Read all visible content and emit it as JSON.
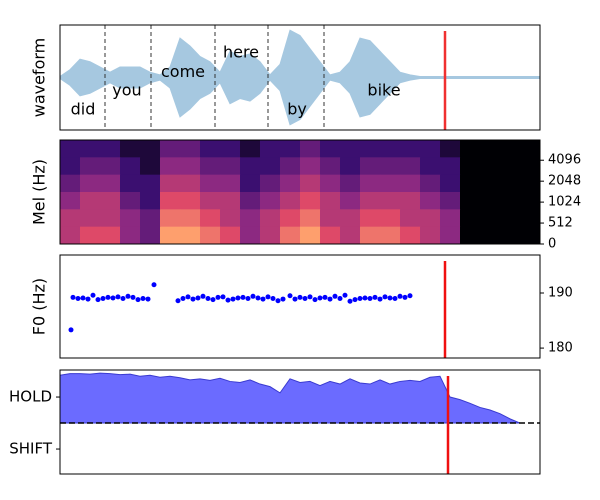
{
  "chart_data": [
    {
      "type": "waveform",
      "y_label": "waveform",
      "color": "#a6c8e0",
      "xlim": [
        0,
        480
      ],
      "ylim": [
        -1,
        1
      ],
      "x": [
        0,
        10,
        20,
        30,
        40,
        50,
        60,
        70,
        80,
        90,
        100,
        110,
        120,
        130,
        140,
        150,
        160,
        170,
        180,
        190,
        200,
        210,
        220,
        230,
        240,
        250,
        260,
        270,
        280,
        290,
        300,
        310,
        320,
        330,
        340,
        350,
        360,
        370,
        380,
        390,
        400,
        410,
        420,
        430,
        440,
        450,
        460,
        470,
        480
      ],
      "values": [
        0.02,
        0.15,
        0.35,
        0.3,
        0.2,
        0.1,
        0.2,
        0.2,
        0.2,
        0.1,
        0.05,
        0.2,
        0.75,
        0.6,
        0.4,
        0.3,
        0.1,
        0.5,
        0.4,
        0.45,
        0.3,
        0.05,
        0.25,
        0.9,
        0.8,
        0.55,
        0.3,
        0.05,
        0.1,
        0.3,
        0.75,
        0.7,
        0.5,
        0.3,
        0.1,
        0.05,
        0.02,
        0.02,
        0.02,
        0.02,
        0.02,
        0.02,
        0.02,
        0.02,
        0.02,
        0.02,
        0.02,
        0.02,
        0.02
      ],
      "words": [
        {
          "text": "did",
          "x": 23,
          "y": -0.62
        },
        {
          "text": "you",
          "x": 67,
          "y": -0.26
        },
        {
          "text": "come",
          "x": 123,
          "y": 0.1
        },
        {
          "text": "here",
          "x": 181,
          "y": 0.47
        },
        {
          "text": "by",
          "x": 237,
          "y": -0.62
        },
        {
          "text": "bike",
          "x": 324,
          "y": -0.26
        }
      ],
      "boundaries": [
        45,
        91,
        155,
        208,
        264
      ],
      "cursor": 385,
      "cursor_color": "#f03030"
    },
    {
      "type": "heatmap",
      "y_label": "Mel (Hz)",
      "xlim": [
        0,
        480
      ],
      "ylim": [
        0,
        8000
      ],
      "yscale": "symlog",
      "linthresh": 512,
      "ytick_side": "right",
      "yticks": [
        0,
        512,
        1024,
        2048,
        4096
      ],
      "colormap": [
        "#000004",
        "#3b0f70",
        "#8c2981",
        "#de4968",
        "#fe9f6d",
        "#fcfdbf"
      ],
      "z": [
        [
          0.2,
          0.2,
          0.2,
          0.1,
          0.1,
          0.3,
          0.3,
          0.2,
          0.2,
          0.1,
          0.2,
          0.2,
          0.3,
          0.2,
          0.2,
          0.2,
          0.2,
          0.2,
          0.2,
          0.1,
          0,
          0,
          0,
          0
        ],
        [
          0.2,
          0.3,
          0.3,
          0.2,
          0.1,
          0.4,
          0.4,
          0.3,
          0.3,
          0.2,
          0.2,
          0.3,
          0.4,
          0.3,
          0.2,
          0.3,
          0.3,
          0.3,
          0.2,
          0.2,
          0,
          0,
          0,
          0
        ],
        [
          0.3,
          0.4,
          0.4,
          0.2,
          0.2,
          0.5,
          0.5,
          0.4,
          0.4,
          0.2,
          0.3,
          0.4,
          0.5,
          0.4,
          0.3,
          0.4,
          0.4,
          0.4,
          0.3,
          0.2,
          0,
          0,
          0,
          0
        ],
        [
          0.4,
          0.5,
          0.5,
          0.3,
          0.2,
          0.6,
          0.6,
          0.5,
          0.5,
          0.3,
          0.4,
          0.5,
          0.6,
          0.5,
          0.4,
          0.5,
          0.5,
          0.5,
          0.4,
          0.3,
          0,
          0,
          0,
          0
        ],
        [
          0.5,
          0.5,
          0.5,
          0.4,
          0.3,
          0.7,
          0.7,
          0.6,
          0.5,
          0.4,
          0.5,
          0.6,
          0.7,
          0.5,
          0.5,
          0.6,
          0.6,
          0.5,
          0.5,
          0.4,
          0,
          0,
          0,
          0
        ],
        [
          0.5,
          0.6,
          0.6,
          0.4,
          0.3,
          0.8,
          0.8,
          0.7,
          0.6,
          0.4,
          0.5,
          0.7,
          0.8,
          0.6,
          0.5,
          0.7,
          0.7,
          0.6,
          0.5,
          0.4,
          0,
          0,
          0,
          0
        ]
      ]
    },
    {
      "type": "scatter",
      "y_label": "F0 (Hz)",
      "xlim": [
        0,
        480
      ],
      "ylim": [
        178.2,
        196.9
      ],
      "yticks": [
        180,
        190
      ],
      "ytick_side": "right",
      "color": "#0000ff",
      "cursor": 385,
      "cursor_color": "#f01010",
      "x": [
        11,
        13,
        18,
        23,
        28,
        33,
        38,
        43,
        48,
        53,
        58,
        63,
        68,
        73,
        78,
        83,
        88,
        94,
        118,
        123,
        128,
        133,
        138,
        143,
        148,
        153,
        158,
        163,
        168,
        173,
        178,
        183,
        188,
        193,
        198,
        203,
        208,
        213,
        218,
        223,
        230,
        235,
        240,
        245,
        250,
        255,
        260,
        265,
        270,
        275,
        280,
        285,
        290,
        295,
        300,
        305,
        310,
        315,
        320,
        325,
        330,
        335,
        340,
        345,
        350
      ],
      "y": [
        183.3,
        189.2,
        189.0,
        189.1,
        188.9,
        189.6,
        188.8,
        189.0,
        189.2,
        189.1,
        189.3,
        189.0,
        189.4,
        189.2,
        188.8,
        189.0,
        188.9,
        191.5,
        188.6,
        189.0,
        189.3,
        188.9,
        189.1,
        189.4,
        189.0,
        188.8,
        189.2,
        189.3,
        188.7,
        188.9,
        189.1,
        189.2,
        189.0,
        189.4,
        189.1,
        188.9,
        189.3,
        189.0,
        188.6,
        188.9,
        189.5,
        188.9,
        189.2,
        189.0,
        189.3,
        188.8,
        189.1,
        189.2,
        188.9,
        189.4,
        189.0,
        189.6,
        188.5,
        188.8,
        189.0,
        189.1,
        189.0,
        189.2,
        188.9,
        189.3,
        189.1,
        189.0,
        189.4,
        189.2,
        189.5
      ]
    },
    {
      "type": "area",
      "xlim": [
        0,
        480
      ],
      "ylim": [
        -0.48,
        1.52
      ],
      "ytick_side": "left",
      "color": "#6b6bff",
      "edge_color": "#3a3ad0",
      "yticks": [
        {
          "value": 1,
          "label": "HOLD"
        },
        {
          "value": 0,
          "label": "SHIFT"
        }
      ],
      "hline": 0.5,
      "cursor": 388,
      "cursor_color": "#f01010",
      "x": [
        0,
        10,
        20,
        30,
        40,
        50,
        60,
        70,
        80,
        90,
        100,
        110,
        120,
        130,
        140,
        150,
        160,
        170,
        180,
        190,
        200,
        210,
        220,
        230,
        240,
        250,
        260,
        270,
        280,
        290,
        300,
        310,
        320,
        330,
        340,
        350,
        360,
        370,
        380,
        390,
        400,
        410,
        420,
        430,
        440,
        450,
        460,
        470,
        480
      ],
      "values": [
        1.42,
        1.45,
        1.45,
        1.44,
        1.46,
        1.45,
        1.43,
        1.44,
        1.4,
        1.42,
        1.38,
        1.4,
        1.37,
        1.33,
        1.35,
        1.32,
        1.36,
        1.3,
        1.28,
        1.33,
        1.25,
        1.2,
        1.08,
        1.35,
        1.28,
        1.3,
        1.22,
        1.3,
        1.25,
        1.35,
        1.27,
        1.25,
        1.33,
        1.25,
        1.3,
        1.32,
        1.3,
        1.38,
        1.4,
        1.0,
        0.95,
        0.88,
        0.8,
        0.75,
        0.68,
        0.58,
        0.5,
        null,
        null
      ]
    }
  ]
}
